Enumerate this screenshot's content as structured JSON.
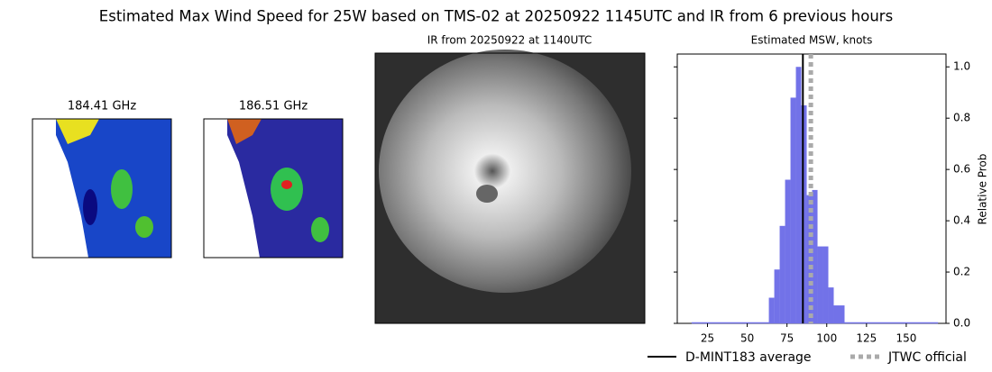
{
  "title": "Estimated Max Wind Speed for 25W based on TMS-02 at 20250922 1145UTC and IR from 6 previous hours",
  "panels": [
    {
      "title": "184.41 GHz"
    },
    {
      "title": "186.51 GHz"
    },
    {
      "title": "IR from 20250922 at 1140UTC"
    }
  ],
  "chart_data": {
    "type": "histogram",
    "title": "Estimated MSW, knots",
    "ylabel": "Relative Prob",
    "bins": [
      63.6,
      67,
      70.4,
      73.8,
      77.2,
      80.6,
      84,
      87.4,
      90.8,
      94.2,
      97.6,
      101,
      104.4,
      107.8,
      111.2
    ],
    "values": [
      0.1,
      0.21,
      0.38,
      0.56,
      0.88,
      1.0,
      0.85,
      0.5,
      0.52,
      0.3,
      0.3,
      0.14,
      0.07,
      0.07
    ],
    "color": "#7272e8",
    "xlim": [
      6,
      175
    ],
    "ylim": [
      0,
      1.05
    ],
    "xticks": [
      25,
      50,
      75,
      100,
      125,
      150
    ],
    "yticks": [
      {
        "value": 0,
        "label": "0.0"
      },
      0.2,
      0.4,
      0.6,
      0.8,
      {
        "value": 1,
        "label": "1.0"
      }
    ],
    "lines": [
      {
        "name": "D-MINT183 average",
        "value": 85,
        "color": "#000000",
        "dash": false
      },
      {
        "name": "JTWC official",
        "value": 90,
        "color": "#aaaaaa",
        "dash": true
      }
    ]
  }
}
